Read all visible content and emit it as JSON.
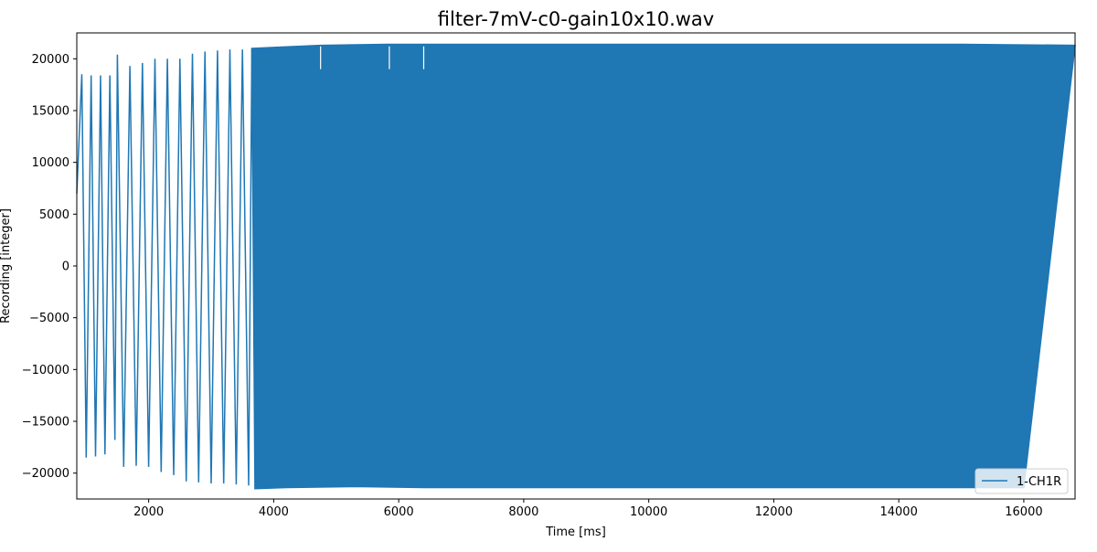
{
  "chart_data": {
    "type": "line",
    "title": "filter-7mV-c0-gain10x10.wav",
    "xlabel": "Time [ms]",
    "ylabel": "Recording [integer]",
    "xlim": [
      850,
      16820
    ],
    "ylim": [
      -22500,
      22500
    ],
    "xticks": [
      2000,
      4000,
      6000,
      8000,
      10000,
      12000,
      14000,
      16000
    ],
    "yticks": [
      -20000,
      -15000,
      -10000,
      -5000,
      0,
      5000,
      10000,
      15000,
      20000
    ],
    "grid": false,
    "legend_position": "lower right",
    "series": [
      {
        "name": "1-CH1R",
        "color": "#1f77b4",
        "description_points": {
          "x": [
            850,
            930,
            1000,
            1080,
            1150,
            1230,
            1300,
            1380,
            1460,
            1500,
            1600,
            1700,
            1800,
            1900,
            2000,
            2100,
            2200,
            2300,
            2400,
            2500,
            2600,
            2700,
            2800,
            2900,
            3000,
            3100,
            3200,
            3300,
            3400,
            3500,
            3600,
            3650,
            3700,
            4000,
            4200,
            4750,
            5300,
            5800,
            6400,
            7000,
            8000,
            9000,
            10000,
            11000,
            12000,
            13000,
            14000,
            15000,
            16000,
            16820
          ],
          "y": [
            7000,
            18500,
            -18500,
            18400,
            -18400,
            18400,
            -18200,
            18400,
            -16800,
            20400,
            -19400,
            19300,
            -19300,
            19600,
            -19400,
            20000,
            -19900,
            20000,
            -20200,
            20000,
            -20800,
            20500,
            -20900,
            20700,
            -21000,
            20800,
            -21000,
            20900,
            -21100,
            20900,
            -21200,
            21000,
            -21500,
            21100,
            -21400,
            21300,
            -21300,
            21400,
            -21400,
            21400,
            -21400,
            21400,
            -21400,
            21400,
            -21400,
            21400,
            -21400,
            21400,
            -21400,
            21300
          ]
        }
      }
    ],
    "legend": {
      "entries": [
        "1-CH1R"
      ]
    }
  }
}
